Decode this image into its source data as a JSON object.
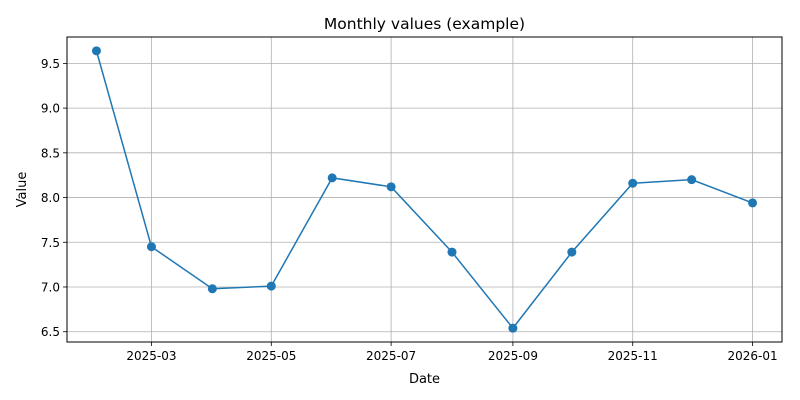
{
  "chart_data": {
    "type": "line",
    "title": "Monthly values (example)",
    "xlabel": "Date",
    "ylabel": "Value",
    "x": [
      "2025-02-01",
      "2025-03-01",
      "2025-04-01",
      "2025-05-01",
      "2025-06-01",
      "2025-07-01",
      "2025-08-01",
      "2025-09-01",
      "2025-10-01",
      "2025-11-01",
      "2025-12-01",
      "2026-01-01"
    ],
    "series": [
      {
        "values": [
          9.64,
          7.45,
          6.98,
          7.01,
          8.22,
          8.12,
          7.39,
          6.54,
          7.39,
          8.16,
          8.2,
          7.94
        ]
      }
    ],
    "xticks": [
      "2025-03",
      "2025-05",
      "2025-07",
      "2025-09",
      "2025-11",
      "2026-01"
    ],
    "yticks": [
      "6.5",
      "7.0",
      "7.5",
      "8.0",
      "8.5",
      "9.0",
      "9.5"
    ],
    "xlim": [
      "2025-01-17",
      "2026-01-16"
    ],
    "ylim": [
      6.385,
      9.795
    ],
    "grid": true,
    "legend": "none",
    "colors": {
      "line": "#1f77b4",
      "grid": "#b0b0b0",
      "axis": "#000000"
    },
    "marker": "circle"
  }
}
